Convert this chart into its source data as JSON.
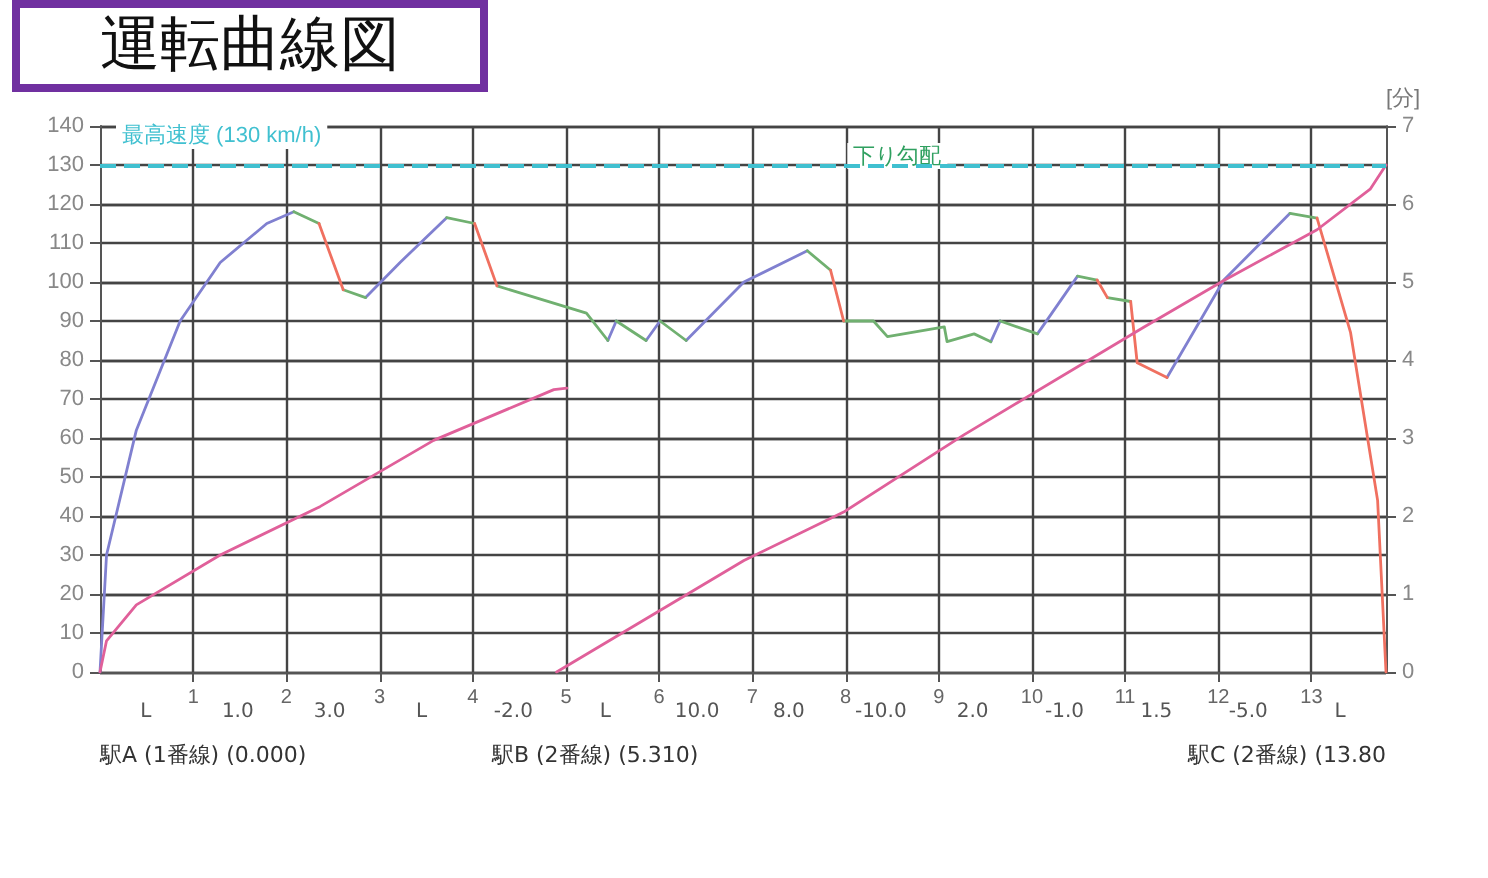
{
  "chart_data": {
    "type": "line",
    "title": "運転曲線図",
    "y2label": "[分]",
    "xlim": [
      0,
      13.8
    ],
    "xticks": [
      1,
      2,
      3,
      4,
      5,
      6,
      7,
      8,
      9,
      10,
      11,
      12,
      13
    ],
    "ylim": [
      0,
      140
    ],
    "yticks": [
      0,
      10,
      20,
      30,
      40,
      50,
      60,
      70,
      80,
      90,
      100,
      110,
      120,
      130,
      140
    ],
    "y2lim": [
      0,
      7
    ],
    "y2ticks": [
      0,
      1,
      2,
      3,
      4,
      5,
      6,
      7
    ],
    "grid": true,
    "marker": "none",
    "line_style": "solid",
    "series": [
      {
        "color": "#8080d0",
        "x": [
          0,
          0.07,
          0.39,
          0.86,
          1.29,
          1.79,
          2.08,
          null,
          2.85,
          3.22,
          3.72,
          null,
          5.45,
          5.54,
          null,
          5.86,
          6.01,
          null,
          6.29,
          6.91,
          7.59,
          null,
          9.56,
          9.66,
          null,
          10.06,
          10.49,
          null,
          11.45,
          12.06,
          12.77
        ],
        "values": [
          0,
          30,
          62,
          90,
          105,
          115,
          118,
          null,
          96,
          105,
          116.5,
          null,
          85,
          90,
          null,
          85,
          90,
          null,
          85,
          100,
          108,
          null,
          84.7,
          90,
          null,
          86.7,
          101.5,
          null,
          75.5,
          100.5,
          117.6
        ]
      },
      {
        "color": "#70b070",
        "x": [
          2.08,
          2.35,
          null,
          2.61,
          2.85,
          null,
          3.72,
          4.02,
          null,
          4.26,
          5.22,
          5.45,
          null,
          5.54,
          5.86,
          null,
          6.01,
          6.29,
          null,
          7.59,
          7.84,
          null,
          7.98,
          8.3,
          8.45,
          9.06,
          9.09,
          9.38,
          9.56,
          null,
          9.66,
          10.06,
          null,
          10.49,
          10.7,
          null,
          10.81,
          11.06,
          null,
          12.77,
          13.06
        ],
        "values": [
          118,
          115,
          null,
          98,
          96,
          null,
          116.5,
          115,
          null,
          99,
          92,
          85,
          null,
          90,
          85,
          null,
          90,
          85,
          null,
          108,
          103,
          null,
          90,
          90,
          86,
          88.5,
          84.7,
          86.7,
          84.7,
          null,
          90,
          86.7,
          null,
          101.5,
          100.5,
          null,
          96,
          95,
          null,
          117.6,
          116.4
        ]
      },
      {
        "color": "#f07060",
        "x": [
          2.35,
          2.61,
          null,
          4.02,
          4.26,
          null,
          7.84,
          7.98,
          null,
          10.7,
          10.81,
          null,
          11.06,
          11.13,
          11.45,
          null,
          13.06,
          13.42,
          13.71,
          13.8
        ],
        "values": [
          115,
          98,
          null,
          115,
          99,
          null,
          103,
          90,
          null,
          100.5,
          96,
          null,
          95,
          79.3,
          75.5,
          null,
          116.4,
          87,
          44,
          0
        ]
      },
      {
        "color": "#e0609a",
        "axis": "y2",
        "x": [
          0,
          0.07,
          0.39,
          1.29,
          2.36,
          3.58,
          4.87,
          5.01,
          null,
          4.9,
          6.91,
          7.98,
          9.27,
          11.2,
          12.06,
          13.06,
          13.63,
          13.8
        ],
        "values": [
          0,
          0.4,
          0.86,
          1.5,
          2.12,
          2.97,
          3.62,
          3.64,
          null,
          0,
          1.43,
          2.05,
          3.04,
          4.42,
          5.02,
          5.67,
          6.19,
          6.5
        ]
      }
    ],
    "ref_lines": [
      {
        "axis": "y",
        "value": 130,
        "label": "最高速度 (130 km/h)",
        "color": "#40c0d0",
        "line_style": "dashed"
      }
    ],
    "annotations": [
      "下り勾配",
      "駅A (1番線) (0.000)",
      "駅B (2番線) (5.310)",
      "駅C (2番線) (13.80",
      "L",
      "1.0",
      "3.0",
      "L",
      "-2.0",
      "L",
      "10.0",
      "8.0",
      "-10.0",
      "2.0",
      "-1.0",
      "1.5",
      "-5.0",
      "L"
    ]
  }
}
